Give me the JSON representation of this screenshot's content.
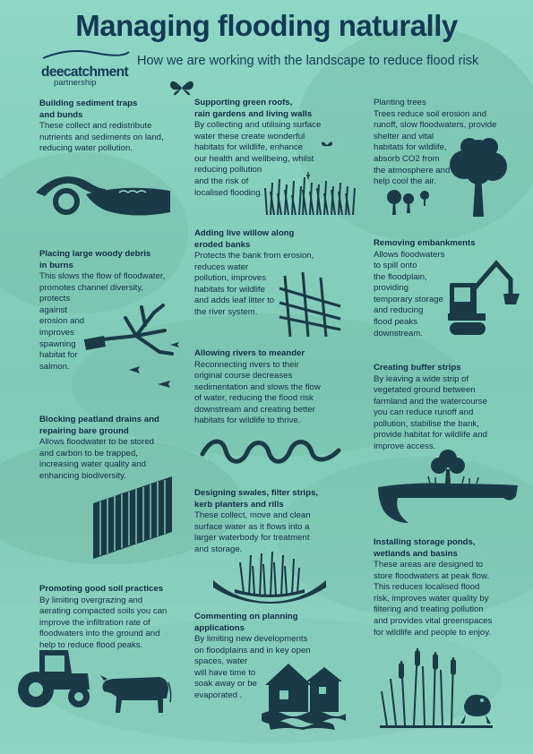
{
  "title": "Managing flooding naturally",
  "subtitle": "How we are working with the landscape to reduce flood risk",
  "logo": {
    "line1": "deecatchment",
    "line2": "partnership"
  },
  "sections": {
    "sediment": {
      "heading_1": "Building sediment traps",
      "heading_2": "and bunds",
      "lines": [
        "These collect and redistribute",
        "nutrients and sediments on land,",
        "reducing water pollution."
      ]
    },
    "roofs": {
      "heading_1": "Supporting green roofs,",
      "heading_2": "rain gardens and living walls",
      "lines": [
        "By collecting and utilising surface",
        "water these create wonderful",
        "habitats for wildlife, enhance",
        "our health and wellbeing, whilst",
        "reducing pollution",
        "and the risk of",
        "localised flooding."
      ]
    },
    "trees": {
      "heading_1": "Planting trees",
      "lines": [
        "Trees reduce soil erosion and",
        "runoff, slow floodwaters, provide",
        "shelter and vital",
        "habitats for wildlife,",
        "absorb CO2 from",
        "the atmosphere and",
        "help cool the air."
      ]
    },
    "willow": {
      "heading_1": "Adding live willow along",
      "heading_2": "eroded banks",
      "lines": [
        "Protects the bank from erosion,",
        "reduces water",
        "pollution, improves",
        "habitats for wildlife",
        "and adds leaf litter to",
        "the river system."
      ]
    },
    "debris": {
      "heading_1": "Placing large woody debris",
      "heading_2": "in burns",
      "lines": [
        "This slows the flow of floodwater,",
        "promotes channel diversity,",
        "protects",
        "against",
        "erosion and",
        "improves",
        "spawning",
        "habitat for",
        "salmon."
      ]
    },
    "embankments": {
      "heading_1": "Removing embankments",
      "lines": [
        "Allows floodwaters",
        "to spill onto",
        "the floodplain,",
        "providing",
        "temporary storage",
        "and reducing",
        "flood peaks",
        "downstream."
      ]
    },
    "meander": {
      "heading_1": "Allowing rivers to meander",
      "lines": [
        "Reconnecting rivers to their",
        "original course decreases",
        "sedimentation and slows the flow",
        "of water, reducing the flood risk",
        "downstream and creating better",
        "habitats for wildlife to thrive."
      ]
    },
    "buffer": {
      "heading_1": "Creating buffer strips",
      "lines": [
        "By leaving a wide strip of",
        "vegetated ground between",
        "farmland and the watercourse",
        "you can reduce runoff and",
        "pollution, stabilise the bank,",
        "provide habitat for wildlife and",
        "improve access."
      ]
    },
    "peatland": {
      "heading_1": "Blocking peatland drains and",
      "heading_2": "repairing bare ground",
      "lines": [
        "Allows floodwater to be stored",
        "and carbon to be trapped,",
        "increasing water quality and",
        "enhancing biodiversity."
      ]
    },
    "swales": {
      "heading_1": "Designing swales, filter strips,",
      "heading_2": "kerb planters and rills",
      "lines": [
        "These collect, move and clean",
        "surface water as it flows into a",
        "larger waterbody for treatment",
        "and storage."
      ]
    },
    "ponds": {
      "heading_1": "Installing storage ponds,",
      "heading_2": "wetlands and basins",
      "lines": [
        "These areas are designed to",
        "store floodwaters at peak flow.",
        "This reduces localised flood",
        "risk, improves water quality by",
        "filtering and treating pollution",
        "and provides vital greenspaces",
        "for wildlife and people to enjoy."
      ]
    },
    "soil": {
      "heading_1": "Promoting good soil practices",
      "lines": [
        "By limiting overgrazing and",
        "aerating compacted soils you can",
        "improve the infiltration rate of",
        "floodwaters into the ground and",
        "help to reduce flood peaks."
      ]
    },
    "planning": {
      "heading_1": "Commenting on planning",
      "heading_2": "applications",
      "lines": [
        "By limiting new developments",
        "on floodplains and in key open",
        "spaces, water",
        "will have time to",
        "soak away or be",
        "evaporated ."
      ]
    }
  },
  "colors": {
    "background": "#88d2c0",
    "text": "#10324a",
    "title": "#123a56",
    "silhouette": "#1b3a47"
  }
}
